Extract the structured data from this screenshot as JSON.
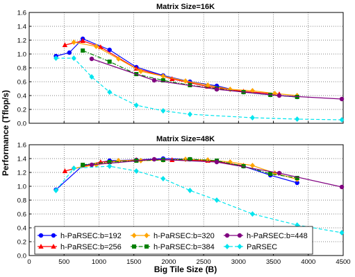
{
  "chart_data": {
    "type": "line",
    "xlabel": "Big Tile Size (B)",
    "ylabel": "Performance (Tflop/s)",
    "xlim": [
      0,
      4500
    ],
    "x_ticks": [
      0,
      500,
      1000,
      1500,
      2000,
      2500,
      3000,
      3500,
      4000,
      4500
    ],
    "grid": true,
    "legend_position": "bottom",
    "panels": [
      {
        "title": "Matrix Size=16K",
        "ylim": [
          0,
          1.6
        ],
        "y_ticks": [
          0.0,
          0.2,
          0.4,
          0.6,
          0.8,
          1.0,
          1.2,
          1.4,
          1.6
        ],
        "series": [
          {
            "name": "h-PaRSEC:b=192",
            "color": "#0000ff",
            "marker": "circle",
            "dash": "solid",
            "x": [
              384,
              576,
              768,
              1152,
              1536,
              1920,
              2304,
              2688,
              3072,
              3456,
              3840
            ],
            "y": [
              0.97,
              1.02,
              1.22,
              1.06,
              0.81,
              0.69,
              0.6,
              0.54,
              0.45,
              0.41,
              0.38
            ]
          },
          {
            "name": "h-PaRSEC:b=256",
            "color": "#ff0000",
            "marker": "triangle",
            "dash": "solid",
            "x": [
              512,
              768,
              1024,
              1536,
              2048,
              2560,
              3072,
              3584
            ],
            "y": [
              1.13,
              1.19,
              1.1,
              0.79,
              0.64,
              0.53,
              0.46,
              0.42
            ]
          },
          {
            "name": "h-PaRSEC:b=320",
            "color": "#ffa500",
            "marker": "diamond",
            "dash": "solid",
            "x": [
              640,
              960,
              1280,
              1600,
              1920,
              2240,
              2560,
              2880,
              3200,
              3520,
              3840
            ],
            "y": [
              1.17,
              1.11,
              0.93,
              0.75,
              0.68,
              0.61,
              0.55,
              0.49,
              0.47,
              0.43,
              0.4
            ]
          },
          {
            "name": "h-PaRSEC:b=384",
            "color": "#008000",
            "marker": "square",
            "dash": "dashdot",
            "x": [
              768,
              1152,
              1536,
              1920,
              2304,
              2688,
              3072,
              3456,
              3840
            ],
            "y": [
              1.05,
              0.89,
              0.71,
              0.62,
              0.55,
              0.5,
              0.45,
              0.41,
              0.38
            ]
          },
          {
            "name": "h-PaRSEC:b=448",
            "color": "#800080",
            "marker": "circle",
            "dash": "solid",
            "x": [
              896,
              1792,
              2688,
              3584,
              4480
            ],
            "y": [
              0.93,
              0.62,
              0.49,
              0.4,
              0.35
            ]
          },
          {
            "name": "PaRSEC",
            "color": "#00e5ee",
            "marker": "diamond",
            "dash": "dashed",
            "x": [
              384,
              640,
              896,
              1152,
              1536,
              1920,
              2304,
              3200,
              3840,
              4480
            ],
            "y": [
              0.94,
              0.94,
              0.67,
              0.45,
              0.26,
              0.18,
              0.13,
              0.08,
              0.06,
              0.05
            ]
          }
        ]
      },
      {
        "title": "Matrix Size=48K",
        "ylim": [
          0,
          1.6
        ],
        "y_ticks": [
          0.0,
          0.2,
          0.4,
          0.6,
          0.8,
          1.0,
          1.2,
          1.4,
          1.6
        ],
        "series": [
          {
            "name": "h-PaRSEC:b=192",
            "color": "#0000ff",
            "marker": "circle",
            "dash": "solid",
            "x": [
              384,
              768,
              1152,
              1536,
              1920,
              2304,
              2688,
              3072,
              3456,
              3840
            ],
            "y": [
              0.95,
              1.3,
              1.37,
              1.38,
              1.4,
              1.39,
              1.36,
              1.29,
              1.16,
              1.05
            ]
          },
          {
            "name": "h-PaRSEC:b=256",
            "color": "#ff0000",
            "marker": "triangle",
            "dash": "solid",
            "x": [
              512,
              1024,
              1536,
              2048,
              2560,
              3072
            ],
            "y": [
              1.22,
              1.35,
              1.38,
              1.38,
              1.37,
              1.3
            ]
          },
          {
            "name": "h-PaRSEC:b=320",
            "color": "#ffa500",
            "marker": "diamond",
            "dash": "solid",
            "x": [
              640,
              960,
              1280,
              1600,
              1920,
              2240,
              2560,
              2880,
              3200,
              3520,
              3840
            ],
            "y": [
              1.26,
              1.31,
              1.37,
              1.37,
              1.38,
              1.39,
              1.38,
              1.35,
              1.3,
              1.19,
              1.1
            ]
          },
          {
            "name": "h-PaRSEC:b=384",
            "color": "#008000",
            "marker": "square",
            "dash": "dashdot",
            "x": [
              768,
              1152,
              1536,
              1920,
              2304,
              2688,
              3072,
              3456,
              3840
            ],
            "y": [
              1.31,
              1.35,
              1.37,
              1.38,
              1.39,
              1.37,
              1.29,
              1.18,
              1.12
            ]
          },
          {
            "name": "h-PaRSEC:b=448",
            "color": "#800080",
            "marker": "circle",
            "dash": "solid",
            "x": [
              896,
              1792,
              2688,
              3584,
              4480
            ],
            "y": [
              1.31,
              1.39,
              1.35,
              1.19,
              0.99
            ]
          },
          {
            "name": "PaRSEC",
            "color": "#00e5ee",
            "marker": "diamond",
            "dash": "dashed",
            "x": [
              384,
              640,
              1152,
              1536,
              1920,
              2304,
              2688,
              3200,
              3840,
              4480
            ],
            "y": [
              0.94,
              1.26,
              1.29,
              1.22,
              1.11,
              0.94,
              0.8,
              0.6,
              0.44,
              0.33
            ]
          }
        ]
      }
    ]
  }
}
